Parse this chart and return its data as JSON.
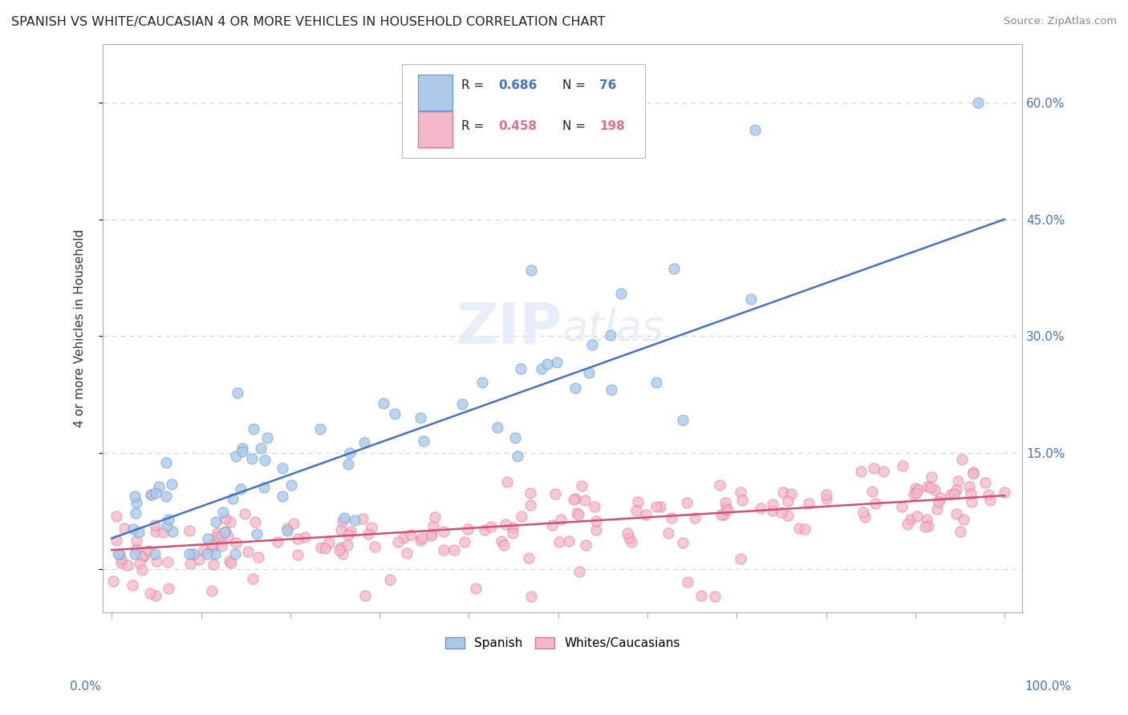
{
  "title": "SPANISH VS WHITE/CAUCASIAN 4 OR MORE VEHICLES IN HOUSEHOLD CORRELATION CHART",
  "source": "Source: ZipAtlas.com",
  "ylabel": "4 or more Vehicles in Household",
  "blue_color": "#aec8e8",
  "blue_edge_color": "#5b9bd5",
  "pink_color": "#f4b8c8",
  "pink_edge_color": "#e07090",
  "blue_line_color": "#4472c4",
  "pink_line_color": "#d05070",
  "watermark_zip": "ZIP",
  "watermark_atlas": "atlas",
  "background_color": "#ffffff",
  "grid_color": "#cccccc",
  "y_ticks": [
    0.0,
    0.15,
    0.3,
    0.45,
    0.6
  ],
  "y_tick_labels": [
    "",
    "15.0%",
    "30.0%",
    "45.0%",
    "60.0%"
  ],
  "xlim": [
    -0.01,
    1.02
  ],
  "ylim": [
    -0.055,
    0.675
  ],
  "blue_line_y0": 0.04,
  "blue_line_y1": 0.45,
  "pink_line_y0": 0.025,
  "pink_line_y1": 0.095,
  "legend_R_blue": "0.686",
  "legend_N_blue": "76",
  "legend_R_pink": "0.458",
  "legend_N_pink": "198"
}
